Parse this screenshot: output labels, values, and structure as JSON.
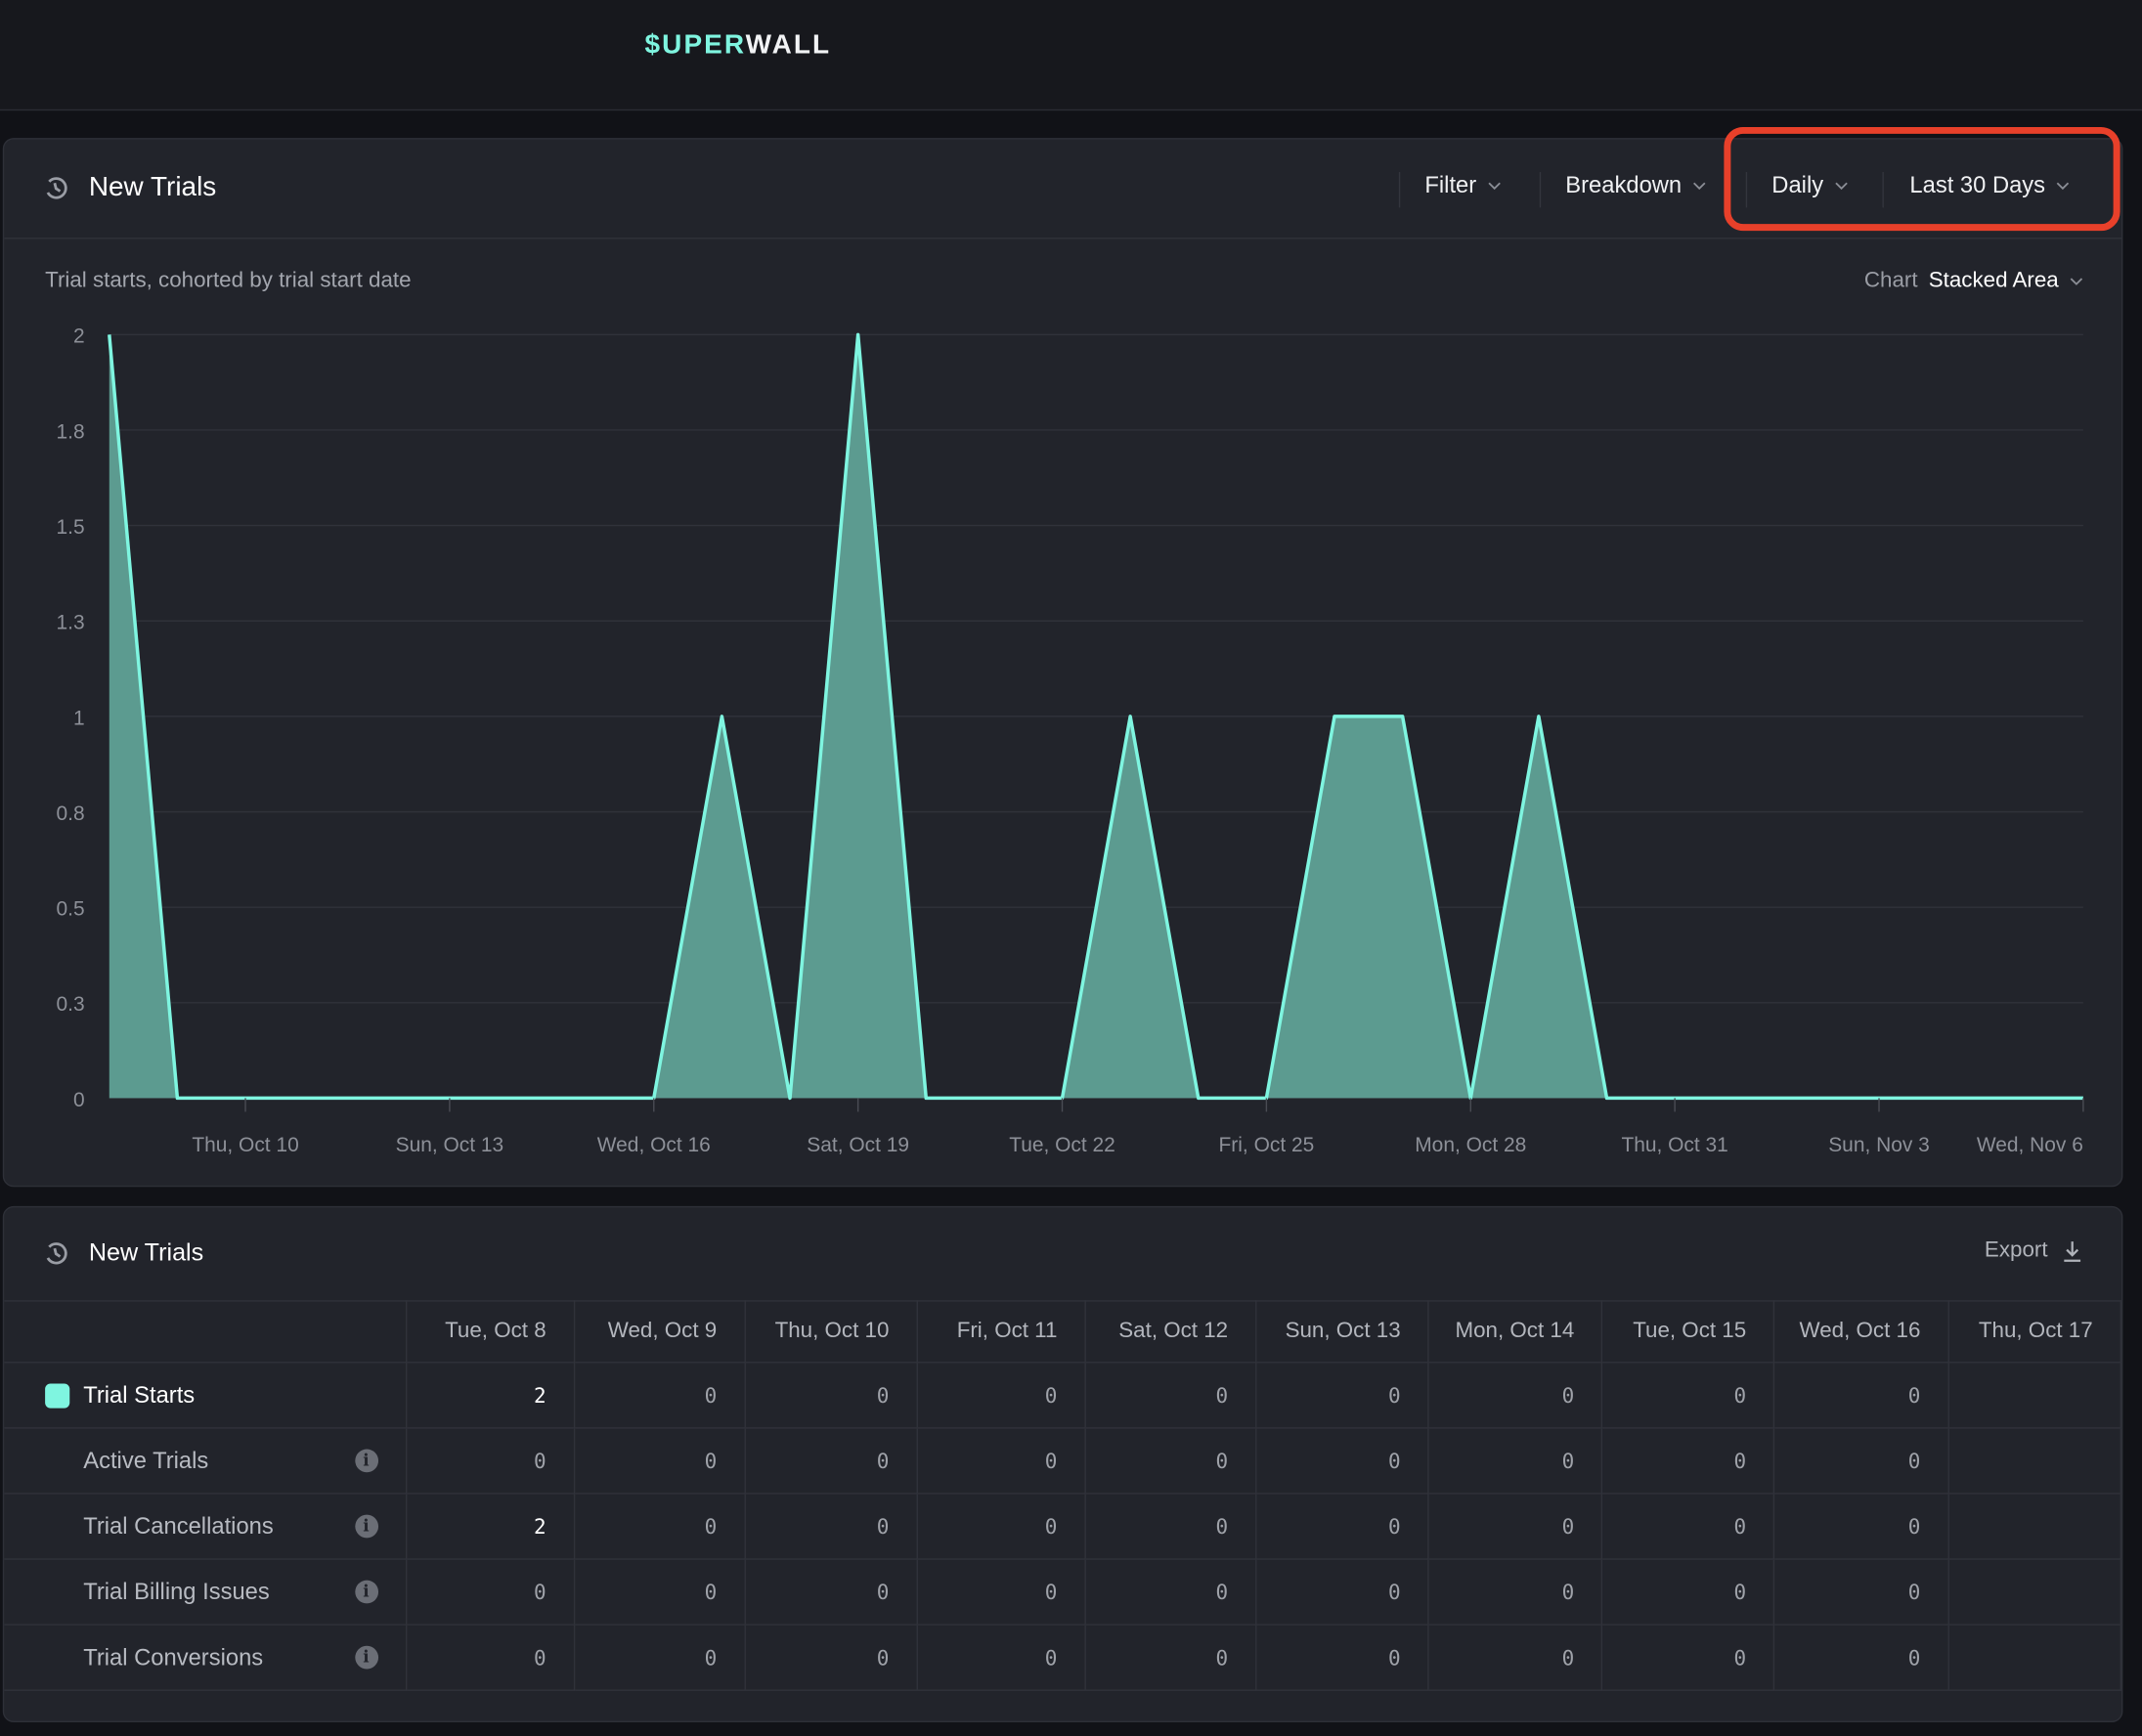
{
  "app": {
    "logo_accent": "$UPER",
    "logo_rest": "WALL"
  },
  "chart_panel": {
    "title": "New Trials",
    "controls": {
      "filter": "Filter",
      "breakdown": "Breakdown",
      "interval": "Daily",
      "range": "Last 30 Days"
    },
    "subtitle": "Trial starts, cohorted by trial start date",
    "chart_label": "Chart",
    "chart_type": "Stacked Area"
  },
  "chart_data": {
    "type": "area",
    "x": [
      "Oct 8",
      "Oct 9",
      "Oct 10",
      "Oct 11",
      "Oct 12",
      "Oct 13",
      "Oct 14",
      "Oct 15",
      "Oct 16",
      "Oct 17",
      "Oct 18",
      "Oct 19",
      "Oct 20",
      "Oct 21",
      "Oct 22",
      "Oct 23",
      "Oct 24",
      "Oct 25",
      "Oct 26",
      "Oct 27",
      "Oct 28",
      "Oct 29",
      "Oct 30",
      "Oct 31",
      "Nov 1",
      "Nov 2",
      "Nov 3",
      "Nov 4",
      "Nov 5",
      "Nov 6"
    ],
    "series": [
      {
        "values": [
          2,
          0,
          0,
          0,
          0,
          0,
          0,
          0,
          0,
          1,
          0,
          2,
          0,
          0,
          0,
          1,
          0,
          0,
          1,
          1,
          0,
          1,
          0,
          0,
          0,
          0,
          0,
          0,
          0,
          0
        ]
      }
    ],
    "ylim": [
      0,
      2
    ],
    "yticks": [
      {
        "v": 0,
        "label": "0"
      },
      {
        "v": 0.25,
        "label": "0.3"
      },
      {
        "v": 0.5,
        "label": "0.5"
      },
      {
        "v": 0.75,
        "label": "0.8"
      },
      {
        "v": 1,
        "label": "1"
      },
      {
        "v": 1.25,
        "label": "1.3"
      },
      {
        "v": 1.5,
        "label": "1.5"
      },
      {
        "v": 1.75,
        "label": "1.8"
      },
      {
        "v": 2,
        "label": "2"
      }
    ],
    "xticks": [
      {
        "i": 2,
        "label": "Thu, Oct 10"
      },
      {
        "i": 5,
        "label": "Sun, Oct 13"
      },
      {
        "i": 8,
        "label": "Wed, Oct 16"
      },
      {
        "i": 11,
        "label": "Sat, Oct 19"
      },
      {
        "i": 14,
        "label": "Tue, Oct 22"
      },
      {
        "i": 17,
        "label": "Fri, Oct 25"
      },
      {
        "i": 20,
        "label": "Mon, Oct 28"
      },
      {
        "i": 23,
        "label": "Thu, Oct 31"
      },
      {
        "i": 26,
        "label": "Sun, Nov 3"
      },
      {
        "i": 29,
        "label": "Wed, Nov 6"
      }
    ],
    "grid": true,
    "colors": {
      "line": "#7ff5e0",
      "fill": "#5c9b90"
    }
  },
  "table_panel": {
    "title": "New Trials",
    "export": "Export",
    "columns": [
      "Tue, Oct 8",
      "Wed, Oct 9",
      "Thu, Oct 10",
      "Fri, Oct 11",
      "Sat, Oct 12",
      "Sun, Oct 13",
      "Mon, Oct 14",
      "Tue, Oct 15",
      "Wed, Oct 16",
      "Thu, Oct 17"
    ],
    "rows": [
      {
        "label": "Trial Starts",
        "swatch": "#7ff5e0",
        "values": [
          "2",
          "0",
          "0",
          "0",
          "0",
          "0",
          "0",
          "0",
          "0",
          ""
        ]
      },
      {
        "label": "Active Trials",
        "info": true,
        "values": [
          "0",
          "0",
          "0",
          "0",
          "0",
          "0",
          "0",
          "0",
          "0",
          ""
        ]
      },
      {
        "label": "Trial Cancellations",
        "info": true,
        "values": [
          "2",
          "0",
          "0",
          "0",
          "0",
          "0",
          "0",
          "0",
          "0",
          ""
        ]
      },
      {
        "label": "Trial Billing Issues",
        "info": true,
        "values": [
          "0",
          "0",
          "0",
          "0",
          "0",
          "0",
          "0",
          "0",
          "0",
          ""
        ]
      },
      {
        "label": "Trial Conversions",
        "info": true,
        "values": [
          "0",
          "0",
          "0",
          "0",
          "0",
          "0",
          "0",
          "0",
          "0",
          ""
        ]
      }
    ]
  }
}
